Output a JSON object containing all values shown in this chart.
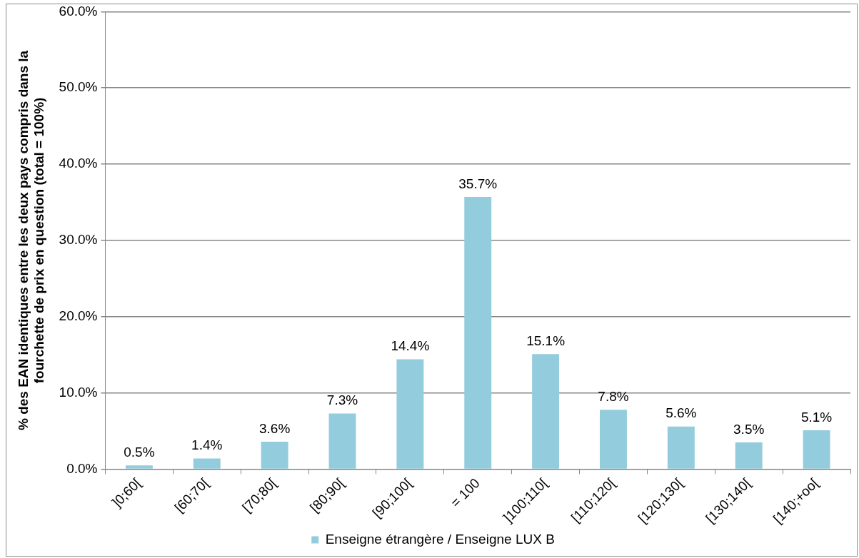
{
  "chart_data": {
    "type": "bar",
    "ylabel": "% des EAN identiques entre les deux pays compris dans la fourchette de prix en question (total = 100%)",
    "categories": [
      "]0;60[",
      "[60;70[",
      "[70;80[",
      "[80;90[",
      "[90;100[",
      "= 100",
      "]100;110[",
      "[110;120[",
      "[120;130[",
      "[130;140[",
      "[140;+oo["
    ],
    "series": [
      {
        "name": "Enseigne étrangère / Enseigne LUX B",
        "color": "#93cddd",
        "values": [
          0.5,
          1.4,
          3.6,
          7.3,
          14.4,
          35.7,
          15.1,
          7.8,
          5.6,
          3.5,
          5.1
        ],
        "value_labels": [
          "0.5%",
          "1.4%",
          "3.6%",
          "7.3%",
          "14.4%",
          "35.7%",
          "15.1%",
          "7.8%",
          "5.6%",
          "3.5%",
          "5.1%"
        ]
      }
    ],
    "ylim": [
      0,
      60
    ],
    "yticks": [
      {
        "value": 0,
        "label": "0.0%"
      },
      {
        "value": 10,
        "label": "10.0%"
      },
      {
        "value": 20,
        "label": "20.0%"
      },
      {
        "value": 30,
        "label": "30.0%"
      },
      {
        "value": 40,
        "label": "40.0%"
      },
      {
        "value": 50,
        "label": "50.0%"
      },
      {
        "value": 60,
        "label": "60.0%"
      }
    ],
    "grid": "y",
    "legend": "bottom"
  }
}
